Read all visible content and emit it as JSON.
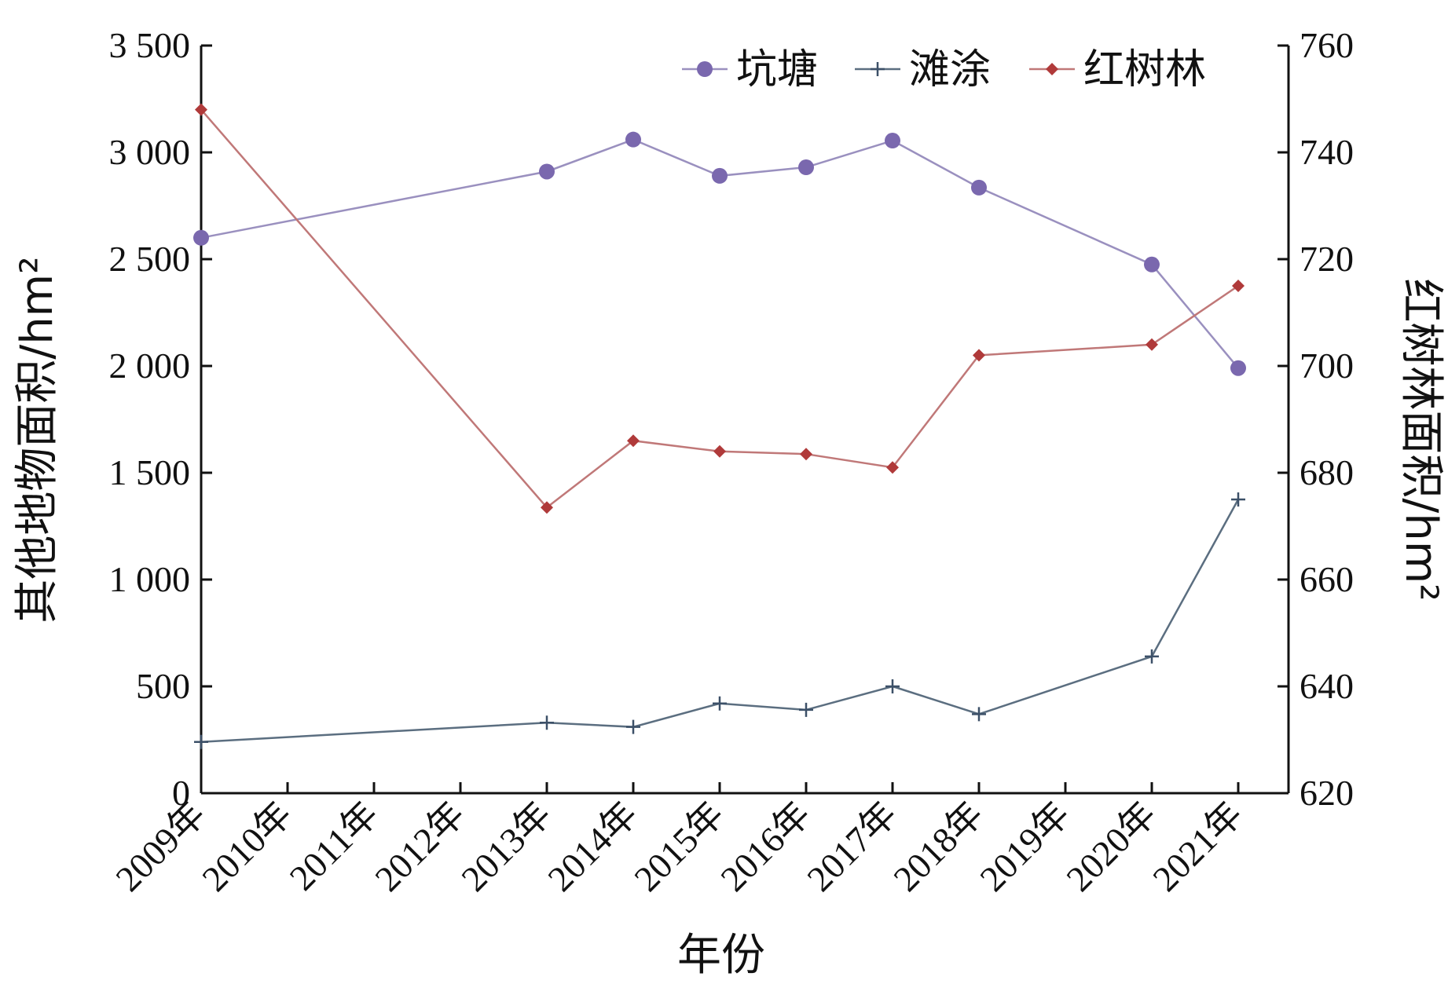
{
  "chart_data": {
    "type": "line",
    "categories": [
      "2009年",
      "2010年",
      "2011年",
      "2012年",
      "2013年",
      "2014年",
      "2015年",
      "2016年",
      "2017年",
      "2018年",
      "2019年",
      "2020年",
      "2021年"
    ],
    "xlabel": "年份",
    "ylabel_left": "其他地物面积/hm²",
    "ylabel_right": "红树林面积/hm²",
    "ylim_left": [
      0,
      3500
    ],
    "yticks_left": [
      0,
      500,
      1000,
      1500,
      2000,
      2500,
      3000,
      3500
    ],
    "ytick_labels_left": [
      "0",
      "500",
      "1 000",
      "1 500",
      "2 000",
      "2 500",
      "3 000",
      "3 500"
    ],
    "ylim_right": [
      620,
      760
    ],
    "yticks_right": [
      620,
      640,
      660,
      680,
      700,
      720,
      740,
      760
    ],
    "ytick_labels_right": [
      "620",
      "640",
      "660",
      "680",
      "700",
      "720",
      "740",
      "760"
    ],
    "legend_position": "top-right",
    "grid": false,
    "series": [
      {
        "name": "坑塘",
        "axis": "left",
        "color": "#9a90bf",
        "marker": "circle",
        "marker_color": "#7a68ae",
        "x": [
          "2009年",
          "2013年",
          "2014年",
          "2015年",
          "2016年",
          "2017年",
          "2018年",
          "2020年",
          "2021年"
        ],
        "values": [
          2600,
          2910,
          3060,
          2890,
          2930,
          3055,
          2835,
          2475,
          1990
        ]
      },
      {
        "name": "滩涂",
        "axis": "left",
        "color": "#5b6e80",
        "marker": "plus",
        "marker_color": "#3c5068",
        "x": [
          "2009年",
          "2013年",
          "2014年",
          "2015年",
          "2016年",
          "2017年",
          "2018年",
          "2020年",
          "2021年"
        ],
        "values": [
          240,
          330,
          310,
          420,
          390,
          500,
          370,
          640,
          1375
        ]
      },
      {
        "name": "红树林",
        "axis": "right",
        "color": "#c07878",
        "marker": "diamond",
        "marker_color": "#b03a3a",
        "x": [
          "2009年",
          "2013年",
          "2014年",
          "2015年",
          "2016年",
          "2017年",
          "2018年",
          "2020年",
          "2021年"
        ],
        "values": [
          748,
          673.5,
          686,
          684,
          683.5,
          681,
          702,
          704,
          715
        ]
      }
    ]
  }
}
